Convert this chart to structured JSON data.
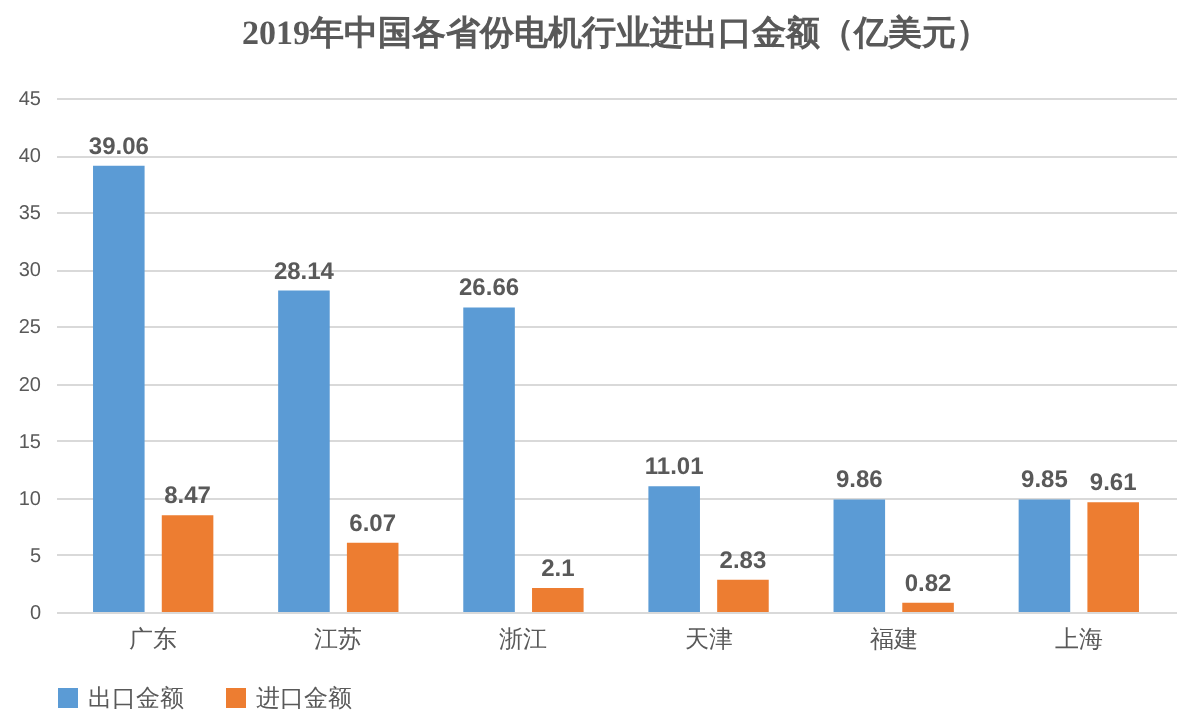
{
  "chart_data": {
    "type": "bar",
    "title": "2019年中国各省份电机行业进出口金额（亿美元）",
    "categories": [
      "广东",
      "江苏",
      "浙江",
      "天津",
      "福建",
      "上海"
    ],
    "series": [
      {
        "name": "出口金额",
        "color": "#5b9bd5",
        "values": [
          39.06,
          28.14,
          26.66,
          11.01,
          9.86,
          9.85
        ]
      },
      {
        "name": "进口金额",
        "color": "#ed7d31",
        "values": [
          8.47,
          6.07,
          2.1,
          2.83,
          0.82,
          9.61
        ]
      }
    ],
    "ylim": [
      0,
      45
    ],
    "yticks": [
      0,
      5,
      10,
      15,
      20,
      25,
      30,
      35,
      40,
      45
    ],
    "grid": "y",
    "legend": "bottom",
    "data_labels": true
  }
}
